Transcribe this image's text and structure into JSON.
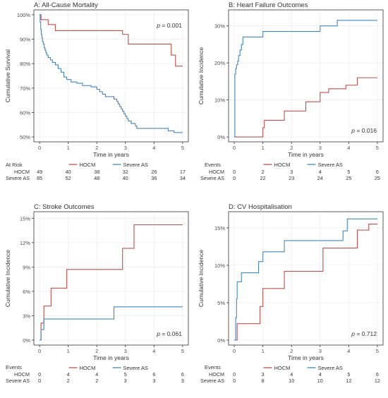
{
  "colors": {
    "hocm": "#c0504d",
    "severe_as": "#4a86b8",
    "panel_border": "#333333",
    "grid": "#ebebeb",
    "text": "#333333"
  },
  "chart_data": [
    {
      "type": "line",
      "step": true,
      "title": "A: All-Cause Mortality",
      "xlabel": "Time in years",
      "ylabel": "Cumulative Survival",
      "xlim": [
        0,
        5
      ],
      "ylim": [
        0.5,
        1.0
      ],
      "x_ticks": [
        "0",
        "1",
        "2",
        "3",
        "4",
        "5"
      ],
      "y_ticks": [
        {
          "value": 0.5,
          "label": "50%"
        },
        {
          "value": 0.6,
          "label": "60%"
        },
        {
          "value": 0.7,
          "label": "70%"
        },
        {
          "value": 0.8,
          "label": "80%"
        },
        {
          "value": 0.9,
          "label": "90%"
        },
        {
          "value": 1.0,
          "label": "100%"
        }
      ],
      "annotation": {
        "text_p": "p",
        "text_val": " = 0.001"
      },
      "legend": {
        "position": "bottom"
      },
      "series": [
        {
          "name": "HOCM",
          "color_key": "hocm",
          "points": [
            [
              0,
              1.0
            ],
            [
              0.05,
              0.98
            ],
            [
              0.3,
              0.96
            ],
            [
              0.55,
              0.935
            ],
            [
              2.9,
              0.92
            ],
            [
              3.1,
              0.88
            ],
            [
              4.6,
              0.835
            ],
            [
              4.75,
              0.79
            ],
            [
              5.0,
              0.79
            ]
          ]
        },
        {
          "name": "Severe AS",
          "color_key": "severe_as",
          "points": [
            [
              0,
              1.0
            ],
            [
              0.02,
              0.97
            ],
            [
              0.04,
              0.94
            ],
            [
              0.06,
              0.92
            ],
            [
              0.08,
              0.905
            ],
            [
              0.1,
              0.89
            ],
            [
              0.13,
              0.88
            ],
            [
              0.16,
              0.865
            ],
            [
              0.19,
              0.855
            ],
            [
              0.22,
              0.845
            ],
            [
              0.25,
              0.835
            ],
            [
              0.3,
              0.825
            ],
            [
              0.38,
              0.815
            ],
            [
              0.45,
              0.805
            ],
            [
              0.55,
              0.795
            ],
            [
              0.65,
              0.78
            ],
            [
              0.75,
              0.765
            ],
            [
              0.85,
              0.745
            ],
            [
              0.95,
              0.735
            ],
            [
              1.1,
              0.725
            ],
            [
              1.3,
              0.72
            ],
            [
              1.5,
              0.71
            ],
            [
              1.8,
              0.705
            ],
            [
              2.0,
              0.695
            ],
            [
              2.1,
              0.685
            ],
            [
              2.2,
              0.675
            ],
            [
              2.3,
              0.665
            ],
            [
              2.6,
              0.655
            ],
            [
              2.7,
              0.645
            ],
            [
              2.75,
              0.635
            ],
            [
              2.8,
              0.625
            ],
            [
              2.85,
              0.615
            ],
            [
              2.9,
              0.605
            ],
            [
              2.95,
              0.595
            ],
            [
              3.0,
              0.585
            ],
            [
              3.05,
              0.575
            ],
            [
              3.1,
              0.565
            ],
            [
              3.2,
              0.555
            ],
            [
              3.35,
              0.545
            ],
            [
              3.4,
              0.535
            ],
            [
              4.5,
              0.525
            ],
            [
              4.7,
              0.518
            ],
            [
              5.0,
              0.518
            ]
          ]
        }
      ],
      "table": {
        "heading": "At Risk",
        "columns": [
          "0",
          "1",
          "2",
          "3",
          "4",
          "5"
        ],
        "rows": [
          {
            "label": "HOCM",
            "values": [
              "49",
              "40",
              "38",
              "32",
              "26",
              "17"
            ]
          },
          {
            "label": "Severe AS",
            "values": [
              "85",
              "52",
              "48",
              "40",
              "36",
              "34"
            ]
          }
        ]
      }
    },
    {
      "type": "line",
      "step": true,
      "title": "B: Heart Failure Outcomes",
      "xlabel": "Time in years",
      "ylabel": "Cumulative Incidence",
      "xlim": [
        0,
        5
      ],
      "ylim": [
        0,
        0.33
      ],
      "x_ticks": [
        "0",
        "1",
        "2",
        "3",
        "4",
        "5"
      ],
      "y_ticks": [
        {
          "value": 0.0,
          "label": "0%"
        },
        {
          "value": 0.1,
          "label": "10%"
        },
        {
          "value": 0.2,
          "label": "20%"
        },
        {
          "value": 0.3,
          "label": "30%"
        }
      ],
      "annotation": {
        "text_p": "p",
        "text_val": " = 0.016"
      },
      "legend": {
        "position": "bottom"
      },
      "series": [
        {
          "name": "HOCM",
          "color_key": "hocm",
          "points": [
            [
              0,
              0.0
            ],
            [
              0.95,
              0.0
            ],
            [
              1.0,
              0.025
            ],
            [
              1.05,
              0.045
            ],
            [
              1.75,
              0.07
            ],
            [
              2.5,
              0.095
            ],
            [
              3.0,
              0.12
            ],
            [
              3.3,
              0.13
            ],
            [
              3.9,
              0.14
            ],
            [
              4.3,
              0.16
            ],
            [
              5.0,
              0.16
            ]
          ]
        },
        {
          "name": "Severe AS",
          "color_key": "severe_as",
          "points": [
            [
              0,
              0.0
            ],
            [
              0.02,
              0.17
            ],
            [
              0.05,
              0.185
            ],
            [
              0.08,
              0.195
            ],
            [
              0.12,
              0.205
            ],
            [
              0.15,
              0.22
            ],
            [
              0.2,
              0.235
            ],
            [
              0.25,
              0.25
            ],
            [
              0.3,
              0.27
            ],
            [
              1.0,
              0.285
            ],
            [
              3.0,
              0.3
            ],
            [
              3.6,
              0.315
            ],
            [
              5.0,
              0.315
            ]
          ]
        }
      ],
      "table": {
        "heading": "Events",
        "columns": [
          "0",
          "1",
          "2",
          "3",
          "4",
          "5"
        ],
        "rows": [
          {
            "label": "HOCM",
            "values": [
              "0",
              "2",
              "3",
              "4",
              "5",
              "6"
            ]
          },
          {
            "label": "Severe AS",
            "values": [
              "0",
              "22",
              "23",
              "24",
              "25",
              "25"
            ]
          }
        ]
      }
    },
    {
      "type": "line",
      "step": true,
      "title": "C: Stroke Outcomes",
      "xlabel": "Time in years",
      "ylabel": "Cumulative Incidence",
      "xlim": [
        0,
        5
      ],
      "ylim": [
        0,
        0.152
      ],
      "x_ticks": [
        "0",
        "1",
        "2",
        "3",
        "4",
        "5"
      ],
      "y_ticks": [
        {
          "value": 0.0,
          "label": "0%"
        },
        {
          "value": 0.03,
          "label": "3%"
        },
        {
          "value": 0.06,
          "label": "6%"
        },
        {
          "value": 0.09,
          "label": "9%"
        },
        {
          "value": 0.12,
          "label": "12%"
        },
        {
          "value": 0.15,
          "label": "15%"
        }
      ],
      "annotation": {
        "text_p": "p",
        "text_val": " = 0.061"
      },
      "legend": {
        "position": "bottom"
      },
      "series": [
        {
          "name": "HOCM",
          "color_key": "hocm",
          "points": [
            [
              0,
              0.0
            ],
            [
              0.05,
              0.021
            ],
            [
              0.15,
              0.042
            ],
            [
              0.4,
              0.064
            ],
            [
              0.95,
              0.087
            ],
            [
              2.9,
              0.113
            ],
            [
              3.3,
              0.142
            ],
            [
              5.0,
              0.142
            ]
          ]
        },
        {
          "name": "Severe AS",
          "color_key": "severe_as",
          "points": [
            [
              0,
              0.0
            ],
            [
              0.05,
              0.013
            ],
            [
              0.15,
              0.026
            ],
            [
              2.6,
              0.041
            ],
            [
              5.0,
              0.041
            ]
          ]
        }
      ],
      "table": {
        "heading": "Events",
        "columns": [
          "0",
          "1",
          "2",
          "3",
          "4",
          "5"
        ],
        "rows": [
          {
            "label": "HOCM",
            "values": [
              "0",
              "4",
              "4",
              "5",
              "6",
              "6"
            ]
          },
          {
            "label": "Severe AS",
            "values": [
              "0",
              "2",
              "2",
              "3",
              "3",
              "3"
            ]
          }
        ]
      }
    },
    {
      "type": "line",
      "step": true,
      "title": "D: CV Hospitalisation",
      "xlabel": "Time in years",
      "ylabel": "Cumulative Incidence",
      "xlim": [
        0,
        5
      ],
      "ylim": [
        0,
        0.165
      ],
      "x_ticks": [
        "0",
        "1",
        "2",
        "3",
        "4",
        "5"
      ],
      "y_ticks": [
        {
          "value": 0.0,
          "label": "0%"
        },
        {
          "value": 0.05,
          "label": "5%"
        },
        {
          "value": 0.1,
          "label": "10%"
        },
        {
          "value": 0.15,
          "label": "15%"
        }
      ],
      "annotation": {
        "text_p": "p",
        "text_val": " = 0.712"
      },
      "legend": {
        "position": "bottom"
      },
      "series": [
        {
          "name": "HOCM",
          "color_key": "hocm",
          "points": [
            [
              0,
              0.0
            ],
            [
              0.1,
              0.022
            ],
            [
              0.9,
              0.045
            ],
            [
              1.0,
              0.069
            ],
            [
              1.75,
              0.092
            ],
            [
              3.1,
              0.123
            ],
            [
              4.3,
              0.147
            ],
            [
              4.7,
              0.155
            ],
            [
              5.0,
              0.155
            ]
          ]
        },
        {
          "name": "Severe AS",
          "color_key": "severe_as",
          "points": [
            [
              0,
              0.0
            ],
            [
              0.05,
              0.03
            ],
            [
              0.08,
              0.055
            ],
            [
              0.1,
              0.078
            ],
            [
              0.25,
              0.09
            ],
            [
              0.85,
              0.105
            ],
            [
              1.0,
              0.118
            ],
            [
              1.75,
              0.133
            ],
            [
              3.8,
              0.146
            ],
            [
              3.95,
              0.162
            ],
            [
              5.0,
              0.162
            ]
          ]
        }
      ],
      "table": {
        "heading": "Events",
        "columns": [
          "0",
          "1",
          "2",
          "3",
          "4",
          "5"
        ],
        "rows": [
          {
            "label": "HOCM",
            "values": [
              "0",
              "3",
              "4",
              "4",
              "5",
              "6"
            ]
          },
          {
            "label": "Severe AS",
            "values": [
              "0",
              "8",
              "10",
              "10",
              "12",
              "12"
            ]
          }
        ]
      }
    }
  ]
}
